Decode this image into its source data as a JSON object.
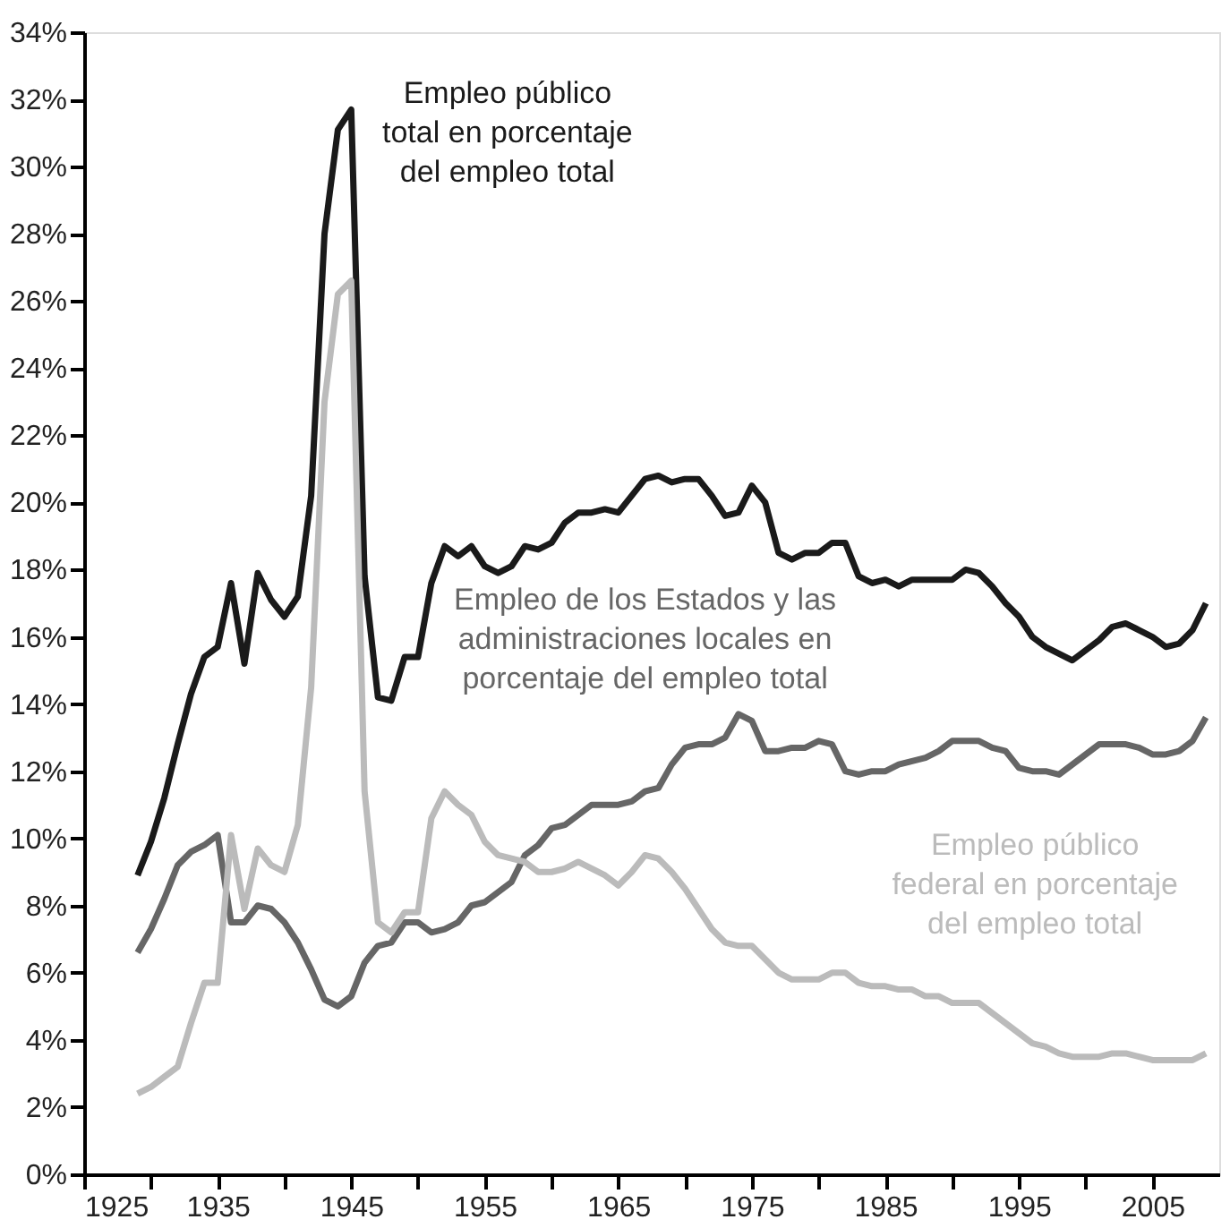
{
  "chart_data": {
    "type": "line",
    "x": [
      1929,
      1930,
      1931,
      1932,
      1933,
      1934,
      1935,
      1936,
      1937,
      1938,
      1939,
      1940,
      1941,
      1942,
      1943,
      1944,
      1945,
      1946,
      1947,
      1948,
      1949,
      1950,
      1951,
      1952,
      1953,
      1954,
      1955,
      1956,
      1957,
      1958,
      1959,
      1960,
      1961,
      1962,
      1963,
      1964,
      1965,
      1966,
      1967,
      1968,
      1969,
      1970,
      1971,
      1972,
      1973,
      1974,
      1975,
      1976,
      1977,
      1978,
      1979,
      1980,
      1981,
      1982,
      1983,
      1984,
      1985,
      1986,
      1987,
      1988,
      1989,
      1990,
      1991,
      1992,
      1993,
      1994,
      1995,
      1996,
      1997,
      1998,
      1999,
      2000,
      2001,
      2002,
      2003,
      2004,
      2005,
      2006,
      2007,
      2008,
      2009
    ],
    "series": [
      {
        "name": "Empleo público total en porcentaje del empleo total",
        "color": "#1a1a1a",
        "values": [
          8.9,
          9.9,
          11.2,
          12.8,
          14.3,
          15.4,
          15.7,
          17.6,
          15.2,
          17.9,
          17.1,
          16.6,
          17.2,
          20.2,
          28.0,
          31.1,
          31.7,
          17.8,
          14.2,
          14.1,
          15.4,
          15.4,
          17.6,
          18.7,
          18.4,
          18.7,
          18.1,
          17.9,
          18.1,
          18.7,
          18.6,
          18.8,
          19.4,
          19.7,
          19.7,
          19.8,
          19.7,
          20.2,
          20.7,
          20.8,
          20.6,
          20.7,
          20.7,
          20.2,
          19.6,
          19.7,
          20.5,
          20.0,
          18.5,
          18.3,
          18.5,
          18.5,
          18.8,
          18.8,
          17.8,
          17.6,
          17.7,
          17.5,
          17.7,
          17.7,
          17.7,
          17.7,
          18.0,
          17.9,
          17.5,
          17.0,
          16.6,
          16.0,
          15.7,
          15.5,
          15.3,
          15.6,
          15.9,
          16.3,
          16.4,
          16.2,
          16.0,
          15.7,
          15.8,
          16.2,
          17.0
        ]
      },
      {
        "name": "Empleo de los Estados y las administraciones locales en porcentaje del empleo total",
        "color": "#666666",
        "values": [
          6.6,
          7.3,
          8.2,
          9.2,
          9.6,
          9.8,
          10.1,
          7.5,
          7.5,
          8.0,
          7.9,
          7.5,
          6.9,
          6.1,
          5.2,
          5.0,
          5.3,
          6.3,
          6.8,
          6.9,
          7.5,
          7.5,
          7.2,
          7.3,
          7.5,
          8.0,
          8.1,
          8.4,
          8.7,
          9.5,
          9.8,
          10.3,
          10.4,
          10.7,
          11.0,
          11.0,
          11.0,
          11.1,
          11.4,
          11.5,
          12.2,
          12.7,
          12.8,
          12.8,
          13.0,
          13.7,
          13.5,
          12.6,
          12.6,
          12.7,
          12.7,
          12.9,
          12.8,
          12.0,
          11.9,
          12.0,
          12.0,
          12.2,
          12.3,
          12.4,
          12.6,
          12.9,
          12.9,
          12.9,
          12.7,
          12.6,
          12.1,
          12.0,
          12.0,
          11.9,
          12.2,
          12.5,
          12.8,
          12.8,
          12.8,
          12.7,
          12.5,
          12.5,
          12.6,
          12.9,
          13.6
        ]
      },
      {
        "name": "Empleo público federal en porcentaje del empleo total",
        "color": "#bbbbbb",
        "values": [
          2.4,
          2.6,
          2.9,
          3.2,
          4.5,
          5.7,
          5.7,
          10.1,
          7.9,
          9.7,
          9.2,
          9.0,
          10.4,
          14.5,
          23.0,
          26.2,
          26.6,
          11.4,
          7.5,
          7.2,
          7.8,
          7.8,
          10.6,
          11.4,
          11.0,
          10.7,
          9.9,
          9.5,
          9.4,
          9.3,
          9.0,
          9.0,
          9.1,
          9.3,
          9.1,
          8.9,
          8.6,
          9.0,
          9.5,
          9.4,
          9.0,
          8.5,
          7.9,
          7.3,
          6.9,
          6.8,
          6.8,
          6.4,
          6.0,
          5.8,
          5.8,
          5.8,
          6.0,
          6.0,
          5.7,
          5.6,
          5.6,
          5.5,
          5.5,
          5.3,
          5.3,
          5.1,
          5.1,
          5.1,
          4.8,
          4.5,
          4.2,
          3.9,
          3.8,
          3.6,
          3.5,
          3.5,
          3.5,
          3.6,
          3.6,
          3.5,
          3.4,
          3.4,
          3.4,
          3.4,
          3.6
        ]
      }
    ],
    "xlim": [
      1925,
      2010
    ],
    "xticks": [
      1925,
      {
        "value": 1930,
        "label": null
      },
      1935,
      {
        "value": 1940,
        "label": null
      },
      1945,
      {
        "value": 1950,
        "label": null
      },
      1955,
      {
        "value": 1960,
        "label": null
      },
      1965,
      {
        "value": 1970,
        "label": null
      },
      1975,
      {
        "value": 1980,
        "label": null
      },
      1985,
      {
        "value": 1990,
        "label": null
      },
      1995,
      {
        "value": 2000,
        "label": null
      },
      2005
    ],
    "ylim": [
      0,
      34
    ],
    "yticks": [
      {
        "value": 0,
        "label": "0%"
      },
      {
        "value": 2,
        "label": "2%"
      },
      {
        "value": 4,
        "label": "4%"
      },
      {
        "value": 6,
        "label": "6%"
      },
      {
        "value": 8,
        "label": "8%"
      },
      {
        "value": 10,
        "label": "10%"
      },
      {
        "value": 12,
        "label": "12%"
      },
      {
        "value": 14,
        "label": "14%"
      },
      {
        "value": 16,
        "label": "16%"
      },
      {
        "value": 18,
        "label": "18%"
      },
      {
        "value": 20,
        "label": "20%"
      },
      {
        "value": 22,
        "label": "22%"
      },
      {
        "value": 24,
        "label": "24%"
      },
      {
        "value": 26,
        "label": "26%"
      },
      {
        "value": 28,
        "label": "28%"
      },
      {
        "value": 30,
        "label": "30%"
      },
      {
        "value": 32,
        "label": "32%"
      },
      {
        "value": 34,
        "label": "34%"
      }
    ],
    "grid": false,
    "legend": false,
    "line_style": "solid"
  }
}
